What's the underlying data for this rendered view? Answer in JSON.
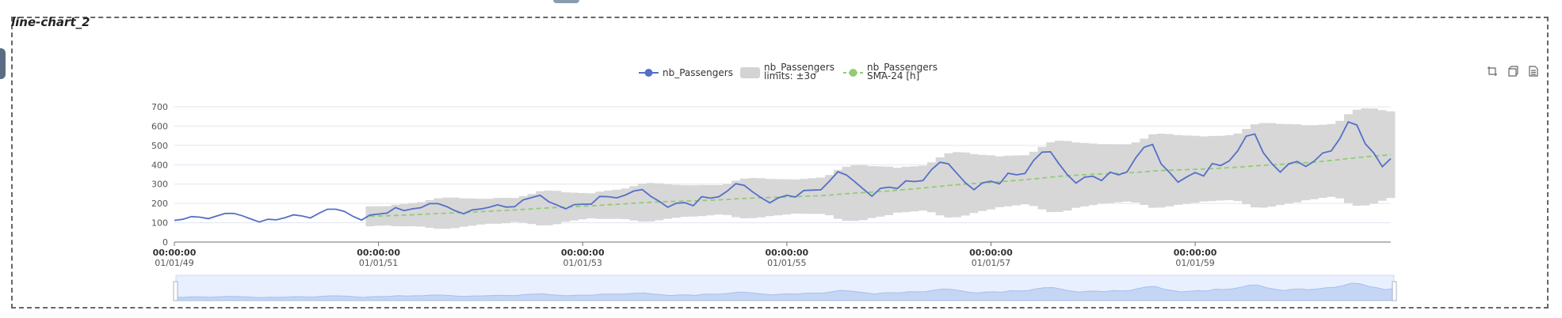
{
  "panel": {
    "title": "line-chart_2"
  },
  "toolbox": [
    {
      "name": "zoom-icon"
    },
    {
      "name": "zoom-reset-icon"
    },
    {
      "name": "save-as-image-icon"
    }
  ],
  "colors": {
    "series": "#5470c6",
    "band": "#d3d3d3",
    "sma": "#91cc75",
    "axis": "#6e7079",
    "grid": "#e0e6f1"
  },
  "chart_data": {
    "type": "line",
    "title": "",
    "legend": {
      "placement": "top-center",
      "items": [
        {
          "name": "nb_Passengers",
          "lines": [
            "nb_Passengers"
          ],
          "kind": "line-marker"
        },
        {
          "name": "nb_Passengers limits: ±3σ",
          "lines": [
            "nb_Passengers",
            "limits: ±3σ"
          ],
          "kind": "area"
        },
        {
          "name": "nb_Passengers SMA-24 [h]",
          "lines": [
            "nb_Passengers",
            "SMA-24 [h]"
          ],
          "kind": "dashed-marker"
        }
      ]
    },
    "x_start": "1949-01",
    "x_end": "1960-12",
    "x_ticks": [
      {
        "time": "00:00:00",
        "date": "01/01/49"
      },
      {
        "time": "00:00:00",
        "date": "01/01/51"
      },
      {
        "time": "00:00:00",
        "date": "01/01/53"
      },
      {
        "time": "00:00:00",
        "date": "01/01/55"
      },
      {
        "time": "00:00:00",
        "date": "01/01/57"
      },
      {
        "time": "00:00:00",
        "date": "01/01/59"
      }
    ],
    "ylim": [
      0,
      700
    ],
    "y_ticks": [
      "0",
      "100",
      "200",
      "300",
      "400",
      "500",
      "600",
      "700"
    ],
    "grid": true,
    "series": [
      {
        "name": "nb_Passengers",
        "values": [
          112,
          118,
          132,
          129,
          121,
          135,
          148,
          148,
          136,
          119,
          104,
          118,
          115,
          126,
          141,
          135,
          125,
          149,
          170,
          170,
          158,
          133,
          114,
          140,
          145,
          150,
          178,
          163,
          172,
          178,
          199,
          199,
          184,
          162,
          146,
          166,
          171,
          180,
          193,
          181,
          183,
          218,
          230,
          242,
          209,
          191,
          172,
          194,
          196,
          196,
          236,
          235,
          229,
          243,
          264,
          272,
          237,
          211,
          180,
          201,
          204,
          188,
          235,
          227,
          234,
          264,
          302,
          293,
          259,
          229,
          203,
          229,
          242,
          233,
          267,
          269,
          270,
          315,
          364,
          347,
          312,
          274,
          237,
          278,
          284,
          277,
          317,
          313,
          318,
          374,
          413,
          405,
          355,
          306,
          271,
          306,
          315,
          301,
          356,
          348,
          355,
          422,
          465,
          467,
          404,
          347,
          305,
          336,
          340,
          318,
          362,
          348,
          363,
          435,
          491,
          505,
          404,
          359,
          310,
          337,
          360,
          342,
          406,
          396,
          420,
          472,
          548,
          559,
          463,
          407,
          362,
          405,
          417,
          391,
          419,
          461,
          472,
          535,
          622,
          606,
          508,
          461,
          390,
          432
        ]
      }
    ],
    "band_series": {
      "name": "nb_Passengers limits: ±3σ",
      "start_index": 23
    },
    "sma_series": {
      "name": "nb_Passengers SMA-24 [h]",
      "start_index": 23
    }
  }
}
